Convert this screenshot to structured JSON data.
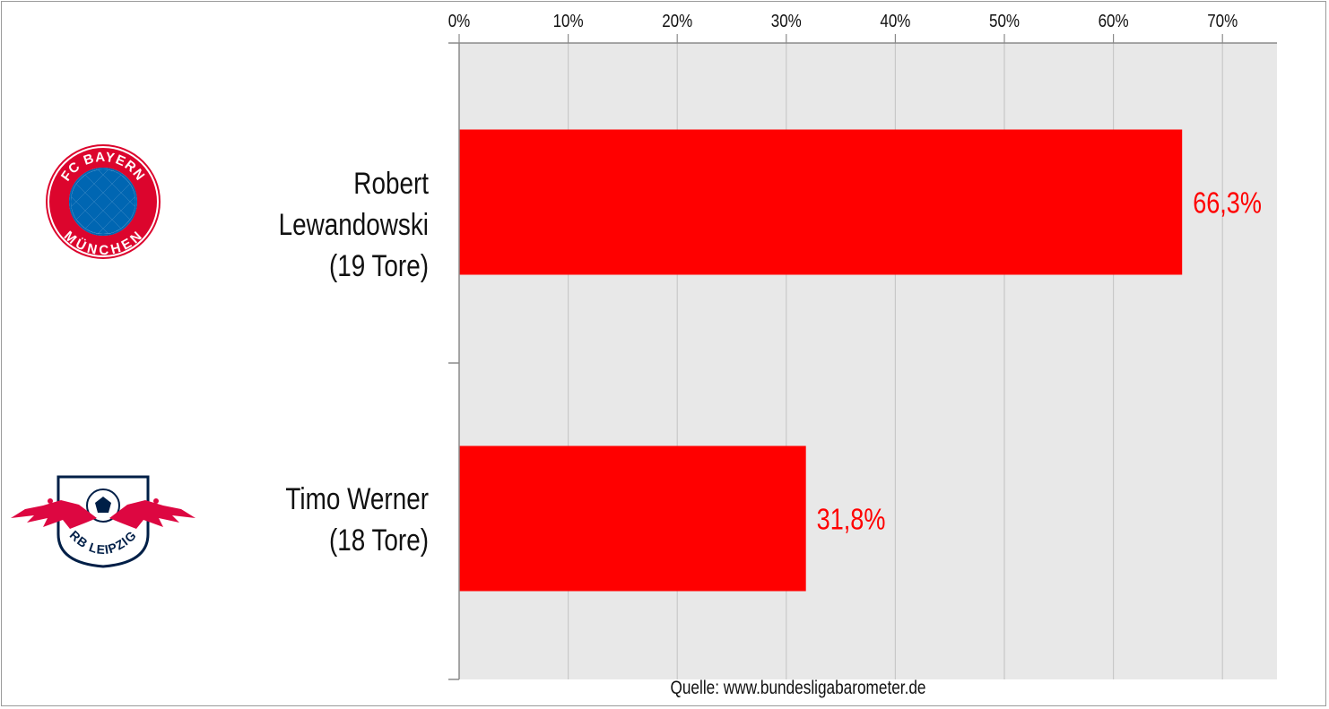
{
  "chart_data": {
    "type": "bar",
    "orientation": "horizontal",
    "categories": [
      "Robert Lewandowski (19 Tore)",
      "Timo Werner (18 Tore)"
    ],
    "values": [
      66.3,
      31.8
    ],
    "value_labels": [
      "66,3%",
      "31,8%"
    ],
    "xlim": [
      0,
      75
    ],
    "xticks": [
      0,
      10,
      20,
      30,
      40,
      50,
      60,
      70
    ],
    "xtick_labels": [
      "0%",
      "10%",
      "20%",
      "30%",
      "40%",
      "50%",
      "60%",
      "70%"
    ],
    "x_axis_position": "top",
    "grid": true,
    "bar_color": "#ff0000",
    "label_color": "#ff0000",
    "plot_background": "#e8e8e8",
    "source": "Quelle: www.bundesligabarometer.de"
  },
  "players": [
    {
      "name": "Robert Lewandowski",
      "goals": "(19 Tore)",
      "logo_icon": "fc-bayern-muenchen-logo",
      "logo_text_top": "FC BAYERN",
      "logo_text_bottom": "MÜNCHEN"
    },
    {
      "name": "Timo Werner",
      "goals": "(18 Tore)",
      "logo_icon": "rb-leipzig-logo",
      "logo_text": "RB LEIPZIG"
    }
  ],
  "colors": {
    "bayern_red": "#dc052d",
    "bayern_blue": "#0066b2",
    "leipzig_navy": "#001f47",
    "leipzig_red": "#dd0741"
  }
}
